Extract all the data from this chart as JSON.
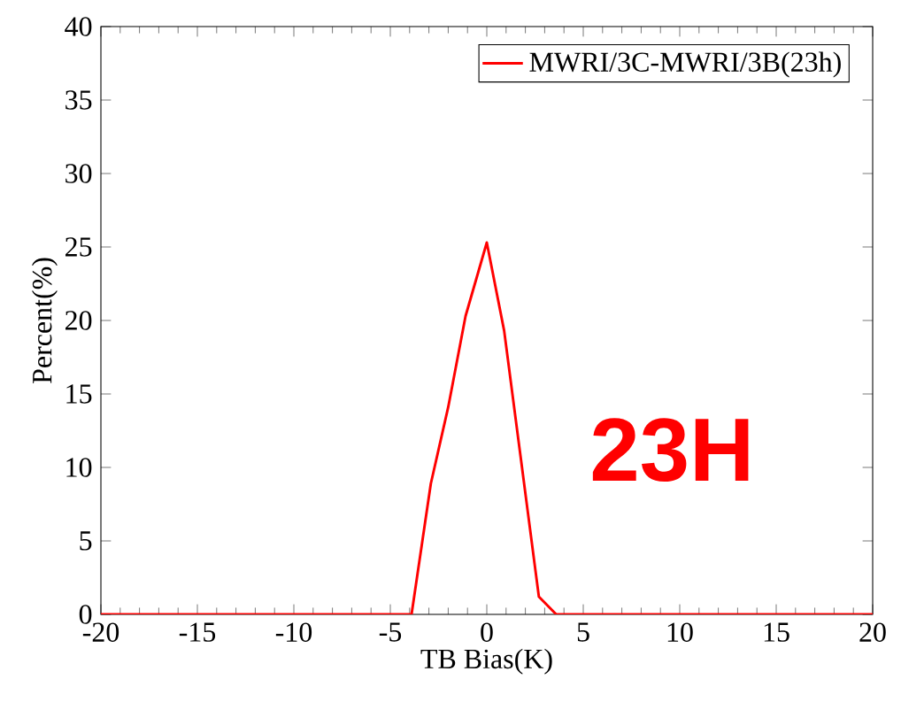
{
  "chart_data": {
    "type": "line",
    "xlabel": "TB Bias(K)",
    "ylabel": "Percent(%)",
    "x": [
      -20,
      -3.9,
      -2.9,
      -2.0,
      -1.1,
      0,
      0.9,
      2.7,
      3.6,
      20
    ],
    "series": [
      {
        "name": "MWRI/3C-MWRI/3B(23h)",
        "color": "#ff0000",
        "values": [
          0,
          0,
          8.9,
          14.1,
          20.3,
          25.3,
          19.3,
          1.2,
          0,
          0
        ]
      }
    ],
    "xlim": [
      -20,
      20
    ],
    "ylim": [
      0,
      40
    ],
    "xticks": [
      -20,
      -15,
      -10,
      -5,
      0,
      5,
      10,
      15,
      20
    ],
    "yticks": [
      0,
      5,
      10,
      15,
      20,
      25,
      30,
      35,
      40
    ],
    "legend": "top right",
    "grid": false,
    "annotations": [
      "23H"
    ]
  }
}
